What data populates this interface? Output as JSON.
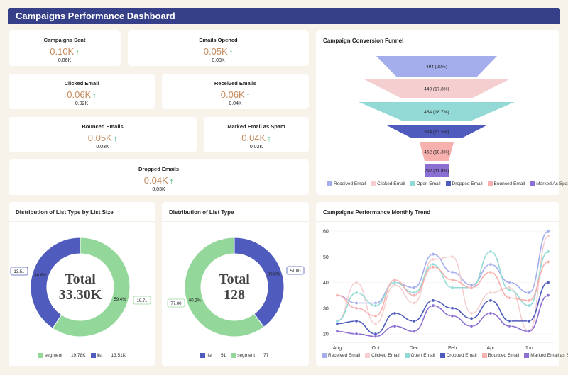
{
  "header": {
    "title": "Campaigns Performance Dashboard",
    "color": "#354088"
  },
  "kpis": [
    {
      "title": "Campaigns Sent",
      "value": "0.10K",
      "arrow": "↑",
      "previous": "0.06K"
    },
    {
      "title": "Emails Opened",
      "value": "0.05K",
      "arrow": "↑",
      "previous": "0.03K"
    },
    {
      "title": "Clicked Email",
      "value": "0.06K",
      "arrow": "↑",
      "previous": "0.02K"
    },
    {
      "title": "Received Emails",
      "value": "0.06K",
      "arrow": "↑",
      "previous": "0.04K"
    },
    {
      "title": "Bounced Emails",
      "value": "0.05K",
      "arrow": "↑",
      "previous": "0.03K"
    },
    {
      "title": "Marked Email as Spam",
      "value": "0.04K",
      "arrow": "↑",
      "previous": "0.02K"
    },
    {
      "title": "Dropped Emails",
      "value": "0.04K",
      "arrow": "↑",
      "previous": "0.03K"
    }
  ],
  "chart_data": [
    {
      "type": "funnel",
      "title": "Campaign Conversion Funnel",
      "stages": [
        {
          "name": "Received Email",
          "value": 494,
          "label": "494 (20%)",
          "color": "#a5aeed"
        },
        {
          "name": "Clicked Email",
          "value": 440,
          "label": "440 (17.8%)",
          "color": "#f5cfd0"
        },
        {
          "name": "Open Email",
          "value": 464,
          "label": "464 (18.7%)",
          "color": "#93dad6"
        },
        {
          "name": "Dropped Email",
          "value": 334,
          "label": "334 (13.5%)",
          "color": "#4f5bbd"
        },
        {
          "name": "Bounced Email",
          "value": 452,
          "label": "452 (18.3%)",
          "color": "#f6b0ae"
        },
        {
          "name": "Marked As Spam",
          "value": 292,
          "label": "292 (11.8%)",
          "color": "#8c6fd2"
        }
      ],
      "legend": "bottom"
    },
    {
      "type": "pie",
      "title": "Distribution of List Type by List Size",
      "center_label": "Total",
      "center_value": "33.30K",
      "slices": [
        {
          "name": "segment",
          "value": 19780,
          "display": "19.78K",
          "percent": "59.4%",
          "callout": "19.7..",
          "color": "#93d89a"
        },
        {
          "name": "list",
          "value": 13510,
          "display": "13.51K",
          "percent": "40.6%",
          "callout": "13.5..",
          "color": "#4f5bbd"
        }
      ],
      "legend": "bottom"
    },
    {
      "type": "pie",
      "title": "Distribution of List Type",
      "center_label": "Total",
      "center_value": "128",
      "slices": [
        {
          "name": "list",
          "value": 51,
          "display": "51",
          "percent": "39.8%",
          "callout": "51.00",
          "color": "#4f5bbd"
        },
        {
          "name": "segment",
          "value": 77,
          "display": "77",
          "percent": "60.2%",
          "callout": "77.00",
          "color": "#93d89a"
        }
      ],
      "legend": "bottom"
    },
    {
      "type": "line",
      "title": "Campaigns Performance Monthly Trend",
      "x": [
        "Aug",
        "Sep",
        "Oct",
        "Nov",
        "Dec",
        "Jan",
        "Feb",
        "Mar",
        "Apr",
        "May",
        "Jun",
        "Jul"
      ],
      "x_tick_labels": [
        "Aug",
        "Oct",
        "Dec",
        "Feb",
        "Apr",
        "Jun"
      ],
      "y_ticks": [
        20,
        30,
        40,
        50,
        60
      ],
      "ylim": [
        18,
        62
      ],
      "grid": true,
      "legend": "bottom",
      "series": [
        {
          "name": "Received Email",
          "color": "#a5aeed",
          "values": [
            35,
            32,
            32,
            40,
            38,
            51,
            44,
            39,
            47,
            40,
            36,
            60
          ]
        },
        {
          "name": "Clicked Email",
          "color": "#f5cfd0",
          "values": [
            25,
            40,
            24,
            39,
            32,
            49,
            50,
            28,
            36,
            38,
            21,
            58
          ]
        },
        {
          "name": "Open Email",
          "color": "#93dad6",
          "values": [
            25,
            36,
            31,
            40,
            36,
            47,
            38,
            38,
            52,
            37,
            31,
            52
          ]
        },
        {
          "name": "Dropped Email",
          "color": "#4f5bbd",
          "values": [
            24,
            25,
            20,
            28,
            25,
            33,
            30,
            26,
            33,
            25,
            25,
            40
          ]
        },
        {
          "name": "Bounced Email",
          "color": "#f6b0ae",
          "values": [
            35,
            30,
            27,
            41,
            35,
            46,
            41,
            38,
            44,
            34,
            33,
            48
          ]
        },
        {
          "name": "Marked Email as Spam",
          "color": "#8c6fd2",
          "values": [
            21,
            20,
            19,
            23,
            21,
            31,
            27,
            23,
            28,
            23,
            21,
            35
          ]
        }
      ]
    }
  ]
}
